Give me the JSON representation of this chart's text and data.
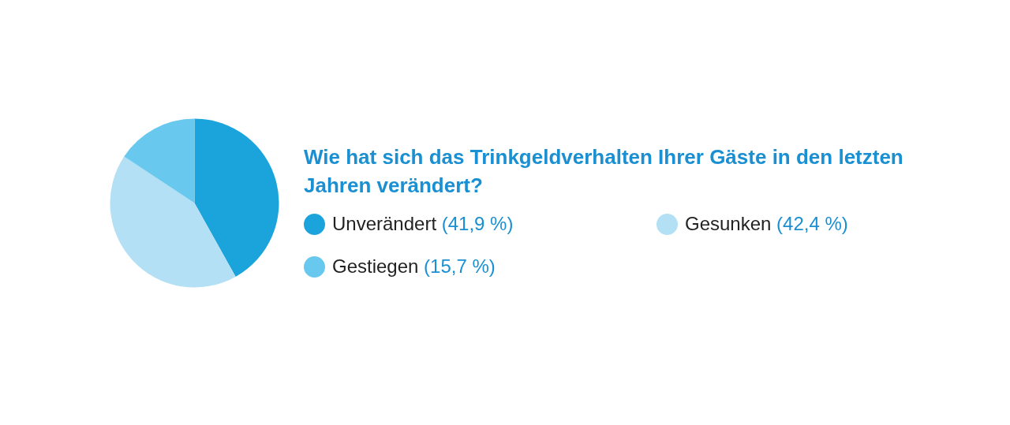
{
  "chart_data": {
    "type": "pie",
    "title": "Wie hat sich das Trinkgeldverhalten Ihrer Gäste in den letzten Jahren verändert?",
    "categories": [
      "Unverändert",
      "Gesunken",
      "Gestiegen"
    ],
    "values": [
      41.9,
      42.4,
      15.7
    ],
    "colors": [
      "#1ba3dc",
      "#b3e0f4",
      "#68c8ee"
    ],
    "value_labels": [
      "(41,9 %)",
      "(42,4 %)",
      "(15,7 %)"
    ],
    "legend": "right"
  }
}
